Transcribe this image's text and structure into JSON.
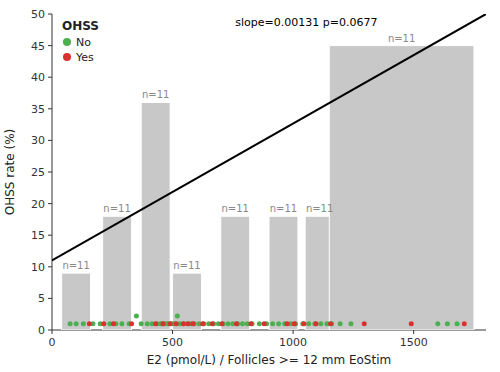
{
  "chart_data": {
    "type": "bar",
    "x_label": "E2 (pmol/L) / Follicles >= 12 mm EoStim",
    "y_label": "OHSS rate (%)",
    "legend_title": "OHSS",
    "legend": "top-left",
    "grid": false,
    "xlim": [
      0,
      1800
    ],
    "xticks": [
      0,
      500,
      1000,
      1500
    ],
    "ylim": [
      0,
      50
    ],
    "yticks": [
      0,
      5,
      10,
      15,
      20,
      25,
      30,
      35,
      40,
      45,
      50
    ],
    "annotations": [
      "slope=0.00131 p=0.0677"
    ],
    "series": [
      {
        "type": "bar",
        "color": "#c8c8c8",
        "x": [
          100,
          270,
          430,
          560,
          760,
          960,
          1110,
          1450
        ],
        "widths": [
          120,
          120,
          120,
          120,
          120,
          120,
          120,
          600
        ],
        "values": [
          9,
          18,
          36,
          9,
          18,
          18,
          18,
          45
        ],
        "bar_labels": [
          "n=11",
          "n=11",
          "n=11",
          "n=11",
          "n=11",
          "n=11",
          "n=11",
          "n=11"
        ]
      },
      {
        "type": "scatter",
        "name": "No",
        "color": "#4CAF50",
        "marker": "circle",
        "x": [
          75,
          100,
          130,
          170,
          200,
          240,
          265,
          290,
          320,
          350,
          370,
          395,
          415,
          435,
          450,
          460,
          470,
          480,
          490,
          500,
          510,
          520,
          530,
          545,
          560,
          575,
          590,
          610,
          630,
          650,
          670,
          690,
          710,
          730,
          750,
          770,
          790,
          810,
          830,
          860,
          890,
          915,
          940,
          965,
          990,
          1010,
          1040,
          1065,
          1090,
          1115,
          1140,
          1160,
          1195,
          1240,
          1600,
          1640,
          1680
        ],
        "values": [
          1,
          1,
          1,
          1,
          1,
          1,
          1,
          1,
          1,
          2.2,
          1,
          1,
          1,
          1,
          1,
          1,
          1,
          1,
          1,
          1,
          1,
          2.2,
          1,
          1,
          1,
          1,
          1,
          1,
          1,
          1,
          1,
          1,
          1,
          1,
          1,
          1,
          1,
          1,
          1,
          1,
          1,
          1,
          1,
          1,
          1,
          1,
          1,
          1,
          1,
          1,
          1,
          1,
          1,
          1,
          1,
          1,
          1
        ]
      },
      {
        "type": "scatter",
        "name": "Yes",
        "color": "#d93030",
        "marker": "circle",
        "x": [
          155,
          215,
          255,
          330,
          430,
          460,
          490,
          515,
          545,
          565,
          585,
          625,
          665,
          705,
          765,
          825,
          880,
          975,
          1005,
          1045,
          1095,
          1155,
          1295,
          1490,
          1710
        ],
        "values": [
          1,
          1,
          1,
          1,
          1,
          1,
          1,
          1,
          1,
          1,
          1,
          1,
          1,
          1,
          1,
          1,
          1,
          1,
          1,
          1,
          1,
          1,
          1,
          1,
          1
        ]
      },
      {
        "type": "line",
        "color": "#000000",
        "line_style": "solid",
        "x": [
          0,
          1800
        ],
        "values": [
          11.0,
          50.0
        ]
      }
    ]
  }
}
